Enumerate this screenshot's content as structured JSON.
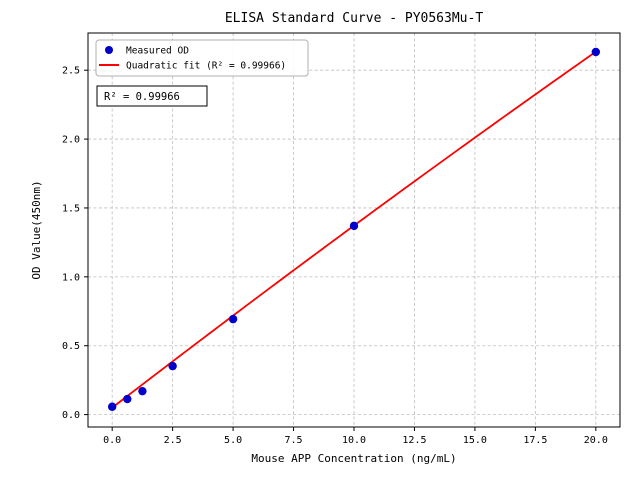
{
  "chart_data": {
    "type": "scatter",
    "title": "ELISA Standard Curve - PY0563Mu-T",
    "xlabel": "Mouse APP Concentration (ng/mL)",
    "ylabel": "OD Value(450nm)",
    "xlim": [
      -1,
      21
    ],
    "ylim": [
      -0.09,
      2.77
    ],
    "xticks": [
      0,
      2.5,
      5,
      7.5,
      10,
      12.5,
      15,
      17.5,
      20
    ],
    "yticks": [
      0,
      0.5,
      1,
      1.5,
      2,
      2.5
    ],
    "grid": true,
    "legend_position": "upper left",
    "annotation": "R² = 0.99966",
    "r_squared": 0.99966,
    "series": [
      {
        "name": "Measured OD",
        "type": "scatter",
        "color": "#0000cd",
        "x": [
          0,
          0.625,
          1.25,
          2.5,
          5,
          10,
          20
        ],
        "y": [
          0.057,
          0.113,
          0.17,
          0.352,
          0.693,
          1.37,
          2.632
        ]
      },
      {
        "name": "Quadratic fit (R² = 0.99966)",
        "type": "line",
        "color": "#ff0000",
        "fit_coeffs": {
          "a": -0.0003,
          "b": 0.1352,
          "c": 0.05
        },
        "x_range": [
          0,
          20
        ]
      }
    ]
  }
}
